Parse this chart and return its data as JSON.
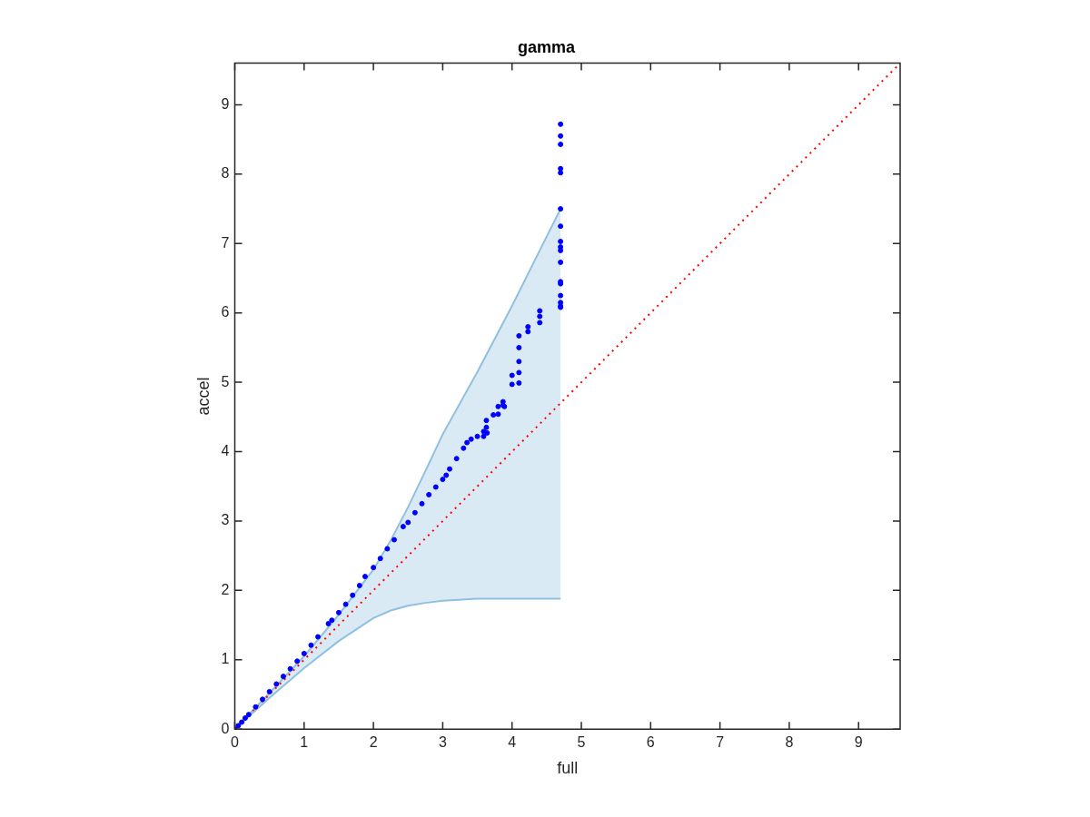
{
  "chart_data": {
    "type": "scatter",
    "title": "gamma",
    "xlabel": "full",
    "ylabel": "accel",
    "xlim": [
      0,
      9.6
    ],
    "ylim": [
      0,
      9.6
    ],
    "xticks": [
      0,
      1,
      2,
      3,
      4,
      5,
      6,
      7,
      8,
      9
    ],
    "yticks": [
      0,
      1,
      2,
      3,
      4,
      5,
      6,
      7,
      8,
      9
    ],
    "grid": false,
    "legend": false,
    "series": [
      {
        "type": "area",
        "color": "#8fc0e0",
        "x": [
          0,
          0.5,
          1,
          1.5,
          2,
          2.25,
          2.5,
          2.75,
          3,
          3.5,
          4,
          4.7
        ],
        "values": [
          0,
          0.52,
          1.05,
          1.65,
          2.3,
          2.72,
          3.2,
          3.72,
          4.25,
          5.15,
          6.1,
          7.5
        ]
      },
      {
        "type": "line",
        "color": "#8fc0e0",
        "x": [
          0,
          0.5,
          1,
          1.5,
          2,
          2.25,
          2.5,
          2.75,
          3,
          3.5,
          4,
          4.7
        ],
        "values": [
          0,
          0.45,
          0.88,
          1.27,
          1.6,
          1.71,
          1.78,
          1.82,
          1.85,
          1.88,
          1.88,
          1.88
        ]
      },
      {
        "type": "line",
        "color": "#ff0000",
        "line_style": "dotted",
        "marker": "none",
        "x": [
          0,
          9.6
        ],
        "values": [
          0,
          9.6
        ]
      },
      {
        "color": "#0000ff",
        "marker": "circle",
        "x": [
          0,
          0.05,
          0.1,
          0.15,
          0.2,
          0.3,
          0.4,
          0.5,
          0.6,
          0.7,
          0.8,
          0.9,
          1.0,
          1.1,
          1.2,
          1.35,
          1.4,
          1.5,
          1.6,
          1.7,
          1.8,
          1.88,
          2.0,
          2.1,
          2.2,
          2.3,
          2.43,
          2.5,
          2.6,
          2.7,
          2.8,
          2.9,
          3.0,
          3.05,
          3.1,
          3.2,
          3.3,
          3.35,
          3.41,
          3.5,
          3.59,
          3.59,
          3.63,
          3.63,
          3.64,
          3.73,
          3.8,
          3.8,
          3.87,
          3.87,
          3.89,
          4.0,
          4.0,
          4.1,
          4.1,
          4.1,
          4.1,
          4.1,
          4.23,
          4.23,
          4.4,
          4.4,
          4.4,
          4.7,
          4.7,
          4.7,
          4.7,
          4.7,
          4.7,
          4.7,
          4.7,
          4.7,
          4.7,
          4.7,
          4.7,
          4.7,
          4.7,
          4.7,
          4.7,
          4.7
        ],
        "values": [
          0,
          0.05,
          0.1,
          0.16,
          0.21,
          0.32,
          0.43,
          0.54,
          0.65,
          0.76,
          0.87,
          0.98,
          1.09,
          1.21,
          1.33,
          1.52,
          1.57,
          1.68,
          1.8,
          1.93,
          2.07,
          2.2,
          2.33,
          2.46,
          2.6,
          2.73,
          2.92,
          2.98,
          3.12,
          3.25,
          3.38,
          3.49,
          3.6,
          3.66,
          3.75,
          3.9,
          4.05,
          4.13,
          4.18,
          4.22,
          4.22,
          4.29,
          4.35,
          4.45,
          4.27,
          4.53,
          4.54,
          4.65,
          4.67,
          4.72,
          4.65,
          4.97,
          5.1,
          4.99,
          5.14,
          5.3,
          5.5,
          5.67,
          5.73,
          5.8,
          5.86,
          5.95,
          6.03,
          6.08,
          6.1,
          6.15,
          6.25,
          6.42,
          6.45,
          6.73,
          6.9,
          6.95,
          7.03,
          7.25,
          7.5,
          8.02,
          8.08,
          8.43,
          8.55,
          8.72
        ]
      }
    ]
  }
}
